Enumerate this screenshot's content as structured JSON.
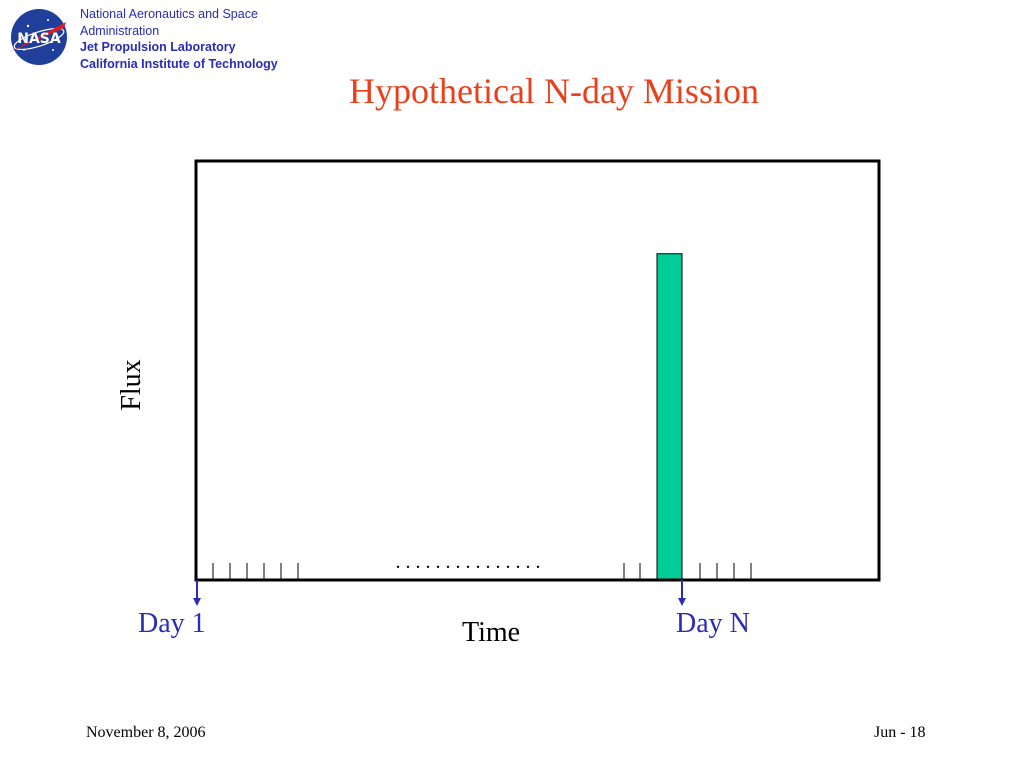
{
  "header": {
    "logo_text": "NASA",
    "org_lines": [
      "National Aeronautics and Space",
      "Administration",
      "Jet Propulsion Laboratory",
      "California Institute of Technology"
    ],
    "title": "Hypothetical N-day Mission"
  },
  "colors": {
    "title": "#e8401c",
    "org_text": "#2b2bb5",
    "bar_fill": "#00cc99",
    "day_marker": "#2b2bb5"
  },
  "chart_data": {
    "type": "bar",
    "xlabel": "Time",
    "ylabel": "Flux",
    "annotations": [
      "Day 1",
      "Day N"
    ],
    "ellipsis": ". . . . . . . . . . . . . . .",
    "bar": {
      "label": "Day N",
      "value": 0.78
    },
    "ylim": [
      0,
      1
    ],
    "grid": false
  },
  "footer": {
    "date": "November 8, 2006",
    "page": "Jun - 18"
  }
}
